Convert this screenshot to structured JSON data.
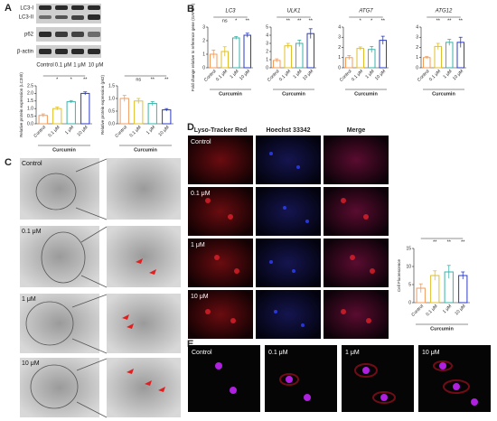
{
  "figure": {
    "panel_labels": [
      "A",
      "B",
      "C",
      "D",
      "E"
    ],
    "blot": {
      "bands": [
        "LC3-I",
        "LC3-II",
        "p62",
        "β-actin"
      ],
      "lanes": [
        "Control",
        "0.1 μM",
        "1 μM",
        "10 μM"
      ]
    },
    "micrograph_c": {
      "rows": [
        "Control",
        "0.1 μM",
        "1 μM",
        "10 μM"
      ]
    },
    "fluorescence_d": {
      "columns": [
        "Lyso-Tracker Red",
        "Hoechst 33342",
        "Merge"
      ],
      "rows": [
        "Control",
        "0.1 μM",
        "1 μM",
        "10 μM"
      ]
    },
    "fluorescence_e": {
      "labels": [
        "Control",
        "0.1 μM",
        "1 μM",
        "10 μM"
      ]
    }
  },
  "chart_data": [
    {
      "type": "bar",
      "ylabel": "Relative protein expression (LC3II/I)",
      "xlabel": "Curcumin",
      "categories": [
        "Control",
        "0.1 μM",
        "1 μM",
        "10 μM"
      ],
      "values": [
        0.55,
        1.0,
        1.45,
        2.0
      ],
      "errors": [
        0.1,
        0.1,
        0.08,
        0.1
      ],
      "colors": [
        "#f39c5a",
        "#e0c02a",
        "#3bb3a8",
        "#2b3bc4"
      ],
      "ylim": [
        0,
        2.5
      ],
      "yticks": [
        {
          "value": 0,
          "label": "0.0"
        },
        {
          "value": 0.5,
          "label": "0.5"
        },
        {
          "value": 1,
          "label": "1.0"
        },
        {
          "value": 1.5,
          "label": "1.5"
        },
        {
          "value": 2,
          "label": "2.0"
        },
        {
          "value": 2.5,
          "label": "2.5"
        }
      ],
      "significance": [
        "*",
        "*",
        "**"
      ]
    },
    {
      "type": "bar",
      "ylabel": "Relative protein expression (p62)",
      "xlabel": "Curcumin",
      "categories": [
        "Control",
        "0.1 μM",
        "1 μM",
        "10 μM"
      ],
      "values": [
        1.0,
        0.9,
        0.8,
        0.55
      ],
      "errors": [
        0.12,
        0.1,
        0.08,
        0.05
      ],
      "colors": [
        "#f39c5a",
        "#e0c02a",
        "#3bb3a8",
        "#2b3bc4"
      ],
      "ylim": [
        0,
        1.5
      ],
      "yticks": [
        {
          "value": 0,
          "label": "0.0"
        },
        {
          "value": 0.5,
          "label": "0.5"
        },
        {
          "value": 1,
          "label": "1.0"
        },
        {
          "value": 1.5,
          "label": "1.5"
        }
      ],
      "significance": [
        "ns",
        "**",
        "**"
      ]
    },
    {
      "type": "bar",
      "title": "LC3",
      "ylabel": "Fold change relative to reference gene (GAPDH)",
      "xlabel": "Curcumin",
      "categories": [
        "Control",
        "0.1 μM",
        "1 μM",
        "10 μM"
      ],
      "values": [
        1.0,
        1.2,
        2.2,
        2.4
      ],
      "errors": [
        0.3,
        0.35,
        0.1,
        0.15
      ],
      "colors": [
        "#f39c5a",
        "#e0c02a",
        "#3bb3a8",
        "#2b3bc4"
      ],
      "ylim": [
        0,
        3
      ],
      "yticks": [
        0,
        1,
        2,
        3
      ],
      "significance": [
        "ns",
        "*",
        "**"
      ]
    },
    {
      "type": "bar",
      "title": "ULK1",
      "xlabel": "Curcumin",
      "categories": [
        "Control",
        "0.1 μM",
        "1 μM",
        "10 μM"
      ],
      "values": [
        0.9,
        2.7,
        3.0,
        4.2
      ],
      "errors": [
        0.2,
        0.3,
        0.4,
        0.6
      ],
      "colors": [
        "#f39c5a",
        "#e0c02a",
        "#3bb3a8",
        "#2b3bc4"
      ],
      "ylim": [
        0,
        5
      ],
      "yticks": [
        0,
        1,
        2,
        3,
        4,
        5
      ],
      "significance": [
        "**",
        "**",
        "**"
      ]
    },
    {
      "type": "bar",
      "title": "ATG7",
      "xlabel": "Curcumin",
      "categories": [
        "Control",
        "0.1 μM",
        "1 μM",
        "10 μM"
      ],
      "values": [
        1.0,
        1.9,
        1.8,
        2.7
      ],
      "errors": [
        0.2,
        0.15,
        0.3,
        0.4
      ],
      "colors": [
        "#f39c5a",
        "#e0c02a",
        "#3bb3a8",
        "#2b3bc4"
      ],
      "ylim": [
        0,
        4
      ],
      "yticks": [
        0,
        1,
        2,
        3,
        4
      ],
      "significance": [
        "*",
        "*",
        "**"
      ]
    },
    {
      "type": "bar",
      "title": "ATG12",
      "xlabel": "Curcumin",
      "categories": [
        "Control",
        "0.1 μM",
        "1 μM",
        "10 μM"
      ],
      "values": [
        1.0,
        2.1,
        2.5,
        2.5
      ],
      "errors": [
        0.1,
        0.3,
        0.3,
        0.5
      ],
      "colors": [
        "#f39c5a",
        "#e0c02a",
        "#3bb3a8",
        "#2b3bc4"
      ],
      "ylim": [
        0,
        4
      ],
      "yticks": [
        0,
        1,
        2,
        3,
        4
      ],
      "significance": [
        "**",
        "**",
        "**"
      ]
    },
    {
      "type": "bar",
      "ylabel": "Cell Fluorescence",
      "xlabel": "Curcumin",
      "categories": [
        "Control",
        "0.1 μM",
        "1 μM",
        "10 μM"
      ],
      "values": [
        4,
        7.5,
        8.5,
        7.5
      ],
      "errors": [
        1.2,
        1.3,
        1.8,
        1.0
      ],
      "colors": [
        "#f39c5a",
        "#e0c02a",
        "#3bb3a8",
        "#2b3bc4"
      ],
      "ylim": [
        0,
        15
      ],
      "yticks": [
        0,
        5,
        10,
        15
      ],
      "significance": [
        "**",
        "**",
        "**"
      ]
    }
  ]
}
